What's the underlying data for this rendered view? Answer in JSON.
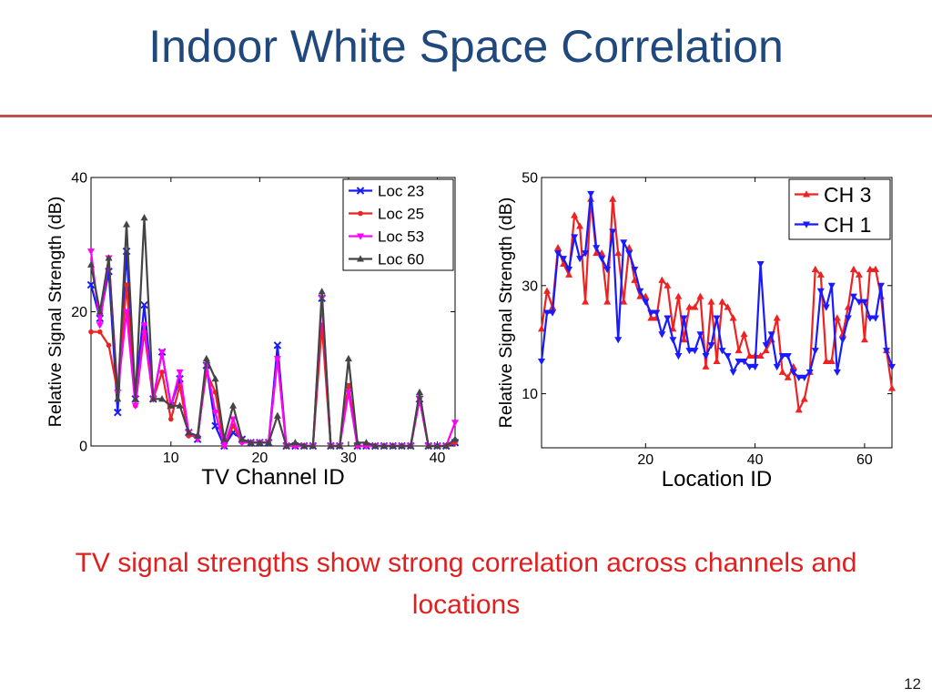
{
  "slide": {
    "title": "Indoor White Space Correlation",
    "caption": "TV signal strengths show strong correlation across channels and locations",
    "page_number": "12",
    "colors": {
      "title": "#1f497d",
      "rule": "#c0504d",
      "caption": "#e02020"
    }
  },
  "chart_data": [
    {
      "type": "line",
      "xlabel": "TV Channel ID",
      "ylabel": "Relative Signal Strength (dB)",
      "xlim": [
        1,
        42
      ],
      "ylim": [
        0,
        40
      ],
      "xticks": [
        10,
        20,
        30,
        40
      ],
      "yticks": [
        0,
        20,
        40
      ],
      "legend_position": "top-right",
      "x": [
        1,
        2,
        3,
        4,
        5,
        6,
        7,
        8,
        9,
        10,
        11,
        12,
        13,
        14,
        15,
        16,
        17,
        18,
        19,
        20,
        21,
        22,
        23,
        24,
        25,
        26,
        27,
        28,
        29,
        30,
        31,
        32,
        33,
        34,
        35,
        36,
        37,
        38,
        39,
        40,
        41,
        42
      ],
      "series": [
        {
          "name": "Loc 23",
          "color": "#1a1aff",
          "marker": "x",
          "values": [
            24,
            19,
            26,
            5,
            29,
            7,
            21,
            7,
            14,
            6,
            10,
            2,
            1,
            12,
            3,
            0,
            2,
            1,
            0.5,
            0.5,
            0.5,
            15,
            0,
            0,
            0,
            0,
            22,
            0,
            0,
            9,
            0,
            0,
            0,
            0,
            0,
            0,
            0,
            7,
            0,
            0,
            0,
            0.5
          ]
        },
        {
          "name": "Loc 25",
          "color": "#ee2222",
          "marker": "o",
          "values": [
            17,
            17,
            15,
            8,
            24,
            6,
            17,
            7,
            11,
            4,
            9,
            1.5,
            1.5,
            11,
            8,
            0,
            3,
            0.5,
            0.5,
            0.5,
            0.5,
            13,
            0,
            0,
            0,
            0,
            18,
            0,
            0,
            9,
            0,
            0,
            0,
            0,
            0,
            0,
            0,
            7,
            0,
            0,
            0,
            0.5
          ]
        },
        {
          "name": "Loc 53",
          "color": "#ff00ff",
          "marker": "v",
          "values": [
            29,
            18,
            28,
            8,
            20,
            6,
            18,
            7,
            14,
            6,
            11,
            2,
            1,
            12,
            5,
            0,
            4,
            0.5,
            0.5,
            0.5,
            0.5,
            13,
            0,
            0,
            0,
            0,
            22,
            0,
            0,
            8,
            0,
            0,
            0,
            0,
            0,
            0,
            0,
            7,
            0,
            0,
            0,
            3.5
          ]
        },
        {
          "name": "Loc 60",
          "color": "#444444",
          "marker": "^",
          "values": [
            27,
            20,
            28,
            7,
            33,
            7,
            34,
            7,
            7,
            6,
            6,
            2,
            1.5,
            13,
            10,
            1,
            6,
            1,
            0.5,
            0.5,
            0.5,
            4.5,
            0,
            0.5,
            0,
            0,
            23,
            0,
            0,
            13,
            0.5,
            0.5,
            0,
            0,
            0,
            0,
            0,
            8,
            0,
            0,
            0,
            1
          ]
        }
      ]
    },
    {
      "type": "line",
      "xlabel": "Location ID",
      "ylabel": "Relative Signal Strength (dB)",
      "xlim": [
        1,
        65
      ],
      "ylim": [
        0,
        50
      ],
      "xticks": [
        20,
        40,
        60
      ],
      "yticks": [
        10,
        30,
        50
      ],
      "legend_position": "top-right",
      "x": [
        1,
        2,
        3,
        4,
        5,
        6,
        7,
        8,
        9,
        10,
        11,
        12,
        13,
        14,
        15,
        16,
        17,
        18,
        19,
        20,
        21,
        22,
        23,
        24,
        25,
        26,
        27,
        28,
        29,
        30,
        31,
        32,
        33,
        34,
        35,
        36,
        37,
        38,
        39,
        40,
        41,
        42,
        43,
        44,
        45,
        46,
        47,
        48,
        49,
        50,
        51,
        52,
        53,
        54,
        55,
        56,
        57,
        58,
        59,
        60,
        61,
        62,
        63,
        64,
        65
      ],
      "series": [
        {
          "name": "CH 3",
          "color": "#ee2222",
          "marker": "^",
          "values": [
            22,
            29,
            26,
            37,
            34,
            32,
            43,
            41,
            27,
            46,
            36,
            36,
            27,
            46,
            36,
            27,
            37,
            31,
            28,
            28,
            24,
            24,
            31,
            30,
            22,
            28,
            20,
            26,
            26,
            28,
            15,
            27,
            16,
            27,
            26,
            24,
            18,
            21,
            17,
            17,
            17,
            18,
            20,
            24,
            14,
            13,
            15,
            7,
            9,
            14,
            33,
            32,
            16,
            16,
            24,
            21,
            26,
            33,
            32,
            20,
            33,
            33,
            28,
            18,
            11
          ]
        },
        {
          "name": "CH 1",
          "color": "#1a1aff",
          "marker": "v",
          "values": [
            16,
            25,
            25,
            36,
            35,
            33,
            39,
            35,
            36,
            47,
            37,
            35,
            33,
            40,
            20,
            38,
            36,
            33,
            29,
            27,
            25,
            25,
            21,
            24,
            20,
            17,
            24,
            18,
            18,
            21,
            17,
            19,
            24,
            18,
            17,
            14,
            16,
            16,
            15,
            15,
            34,
            19,
            21,
            15,
            17,
            17,
            14,
            13,
            13,
            14,
            18,
            29,
            26,
            30,
            14,
            20,
            24,
            28,
            27,
            27,
            24,
            24,
            30,
            18,
            15
          ]
        }
      ]
    }
  ]
}
